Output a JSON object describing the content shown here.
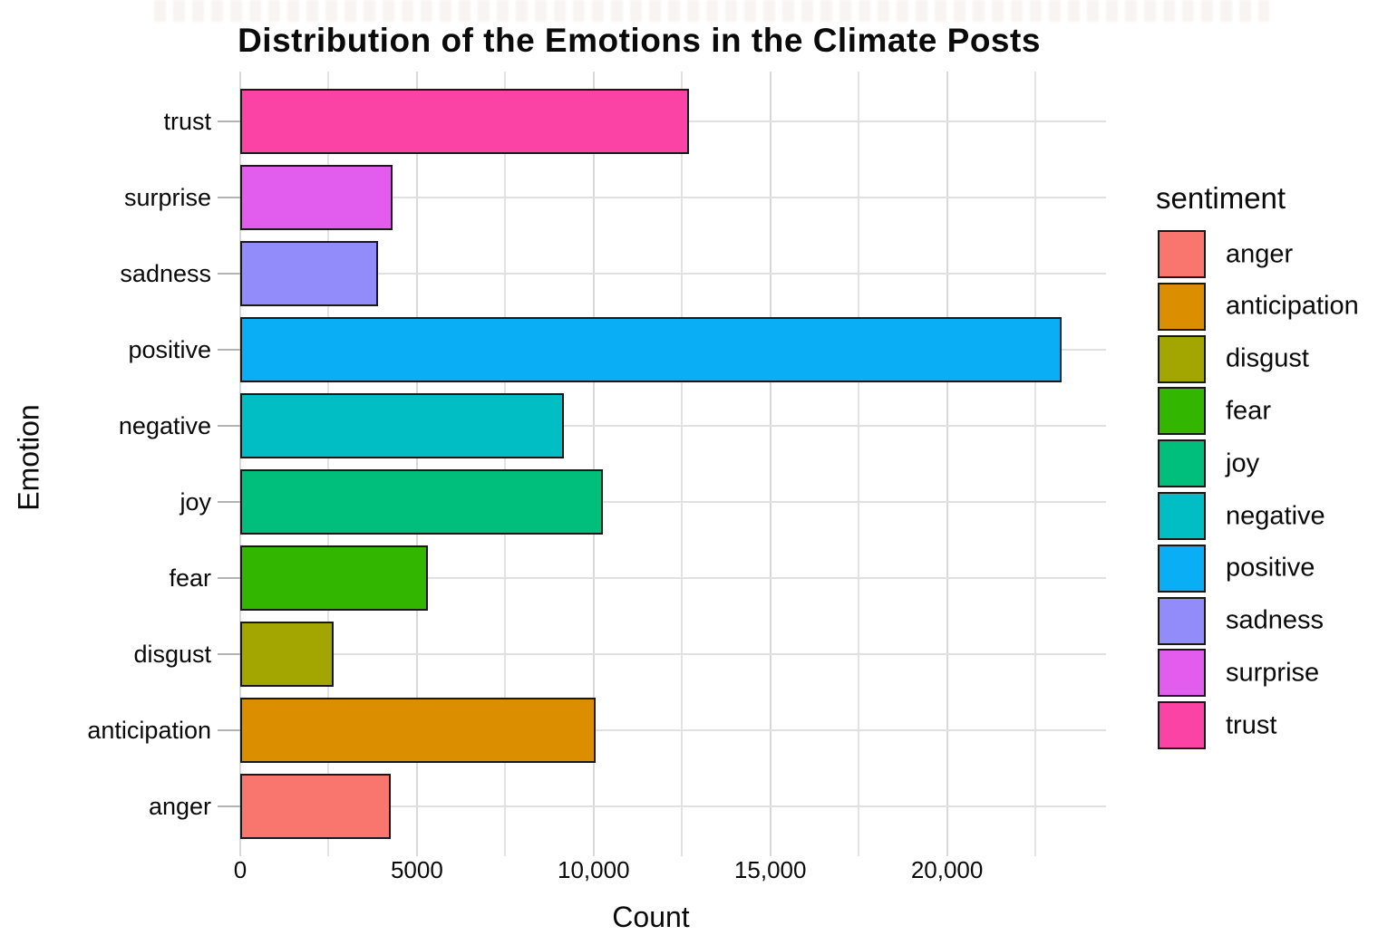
{
  "page": {
    "background": "#FFFFFF"
  },
  "chart_data": {
    "type": "bar",
    "orientation": "horizontal",
    "title": "Distribution of the Emotions in the Climate Posts",
    "xlabel": "Count",
    "ylabel": "Emotion",
    "categories_top_to_bottom": [
      "trust",
      "surprise",
      "sadness",
      "positive",
      "negative",
      "joy",
      "fear",
      "disgust",
      "anticipation",
      "anger"
    ],
    "values": {
      "trust": 12700,
      "surprise": 4300,
      "sadness": 3900,
      "positive": 23250,
      "negative": 9150,
      "joy": 10250,
      "fear": 5300,
      "disgust": 2650,
      "anticipation": 10050,
      "anger": 4250
    },
    "xlim": [
      0,
      24500
    ],
    "x_major_ticks": [
      {
        "value": 0,
        "label": "0"
      },
      {
        "value": 5000,
        "label": "5000"
      },
      {
        "value": 10000,
        "label": "10,000"
      },
      {
        "value": 15000,
        "label": "15,000"
      },
      {
        "value": 20000,
        "label": "20,000"
      }
    ],
    "x_minor_ticks": [
      2500,
      7500,
      12500,
      17500,
      22500
    ],
    "grid": "major+minor, light gray on white",
    "legend": {
      "title": "sentiment",
      "position": "right",
      "entries": [
        {
          "label": "anger",
          "color": "#F8766D"
        },
        {
          "label": "anticipation",
          "color": "#DB8E00"
        },
        {
          "label": "disgust",
          "color": "#A3A500"
        },
        {
          "label": "fear",
          "color": "#33B600"
        },
        {
          "label": "joy",
          "color": "#00BF7D"
        },
        {
          "label": "negative",
          "color": "#00BEC4"
        },
        {
          "label": "positive",
          "color": "#0AAEF5"
        },
        {
          "label": "sadness",
          "color": "#918CFA"
        },
        {
          "label": "surprise",
          "color": "#E25CEE"
        },
        {
          "label": "trust",
          "color": "#FB43A6"
        }
      ]
    }
  }
}
